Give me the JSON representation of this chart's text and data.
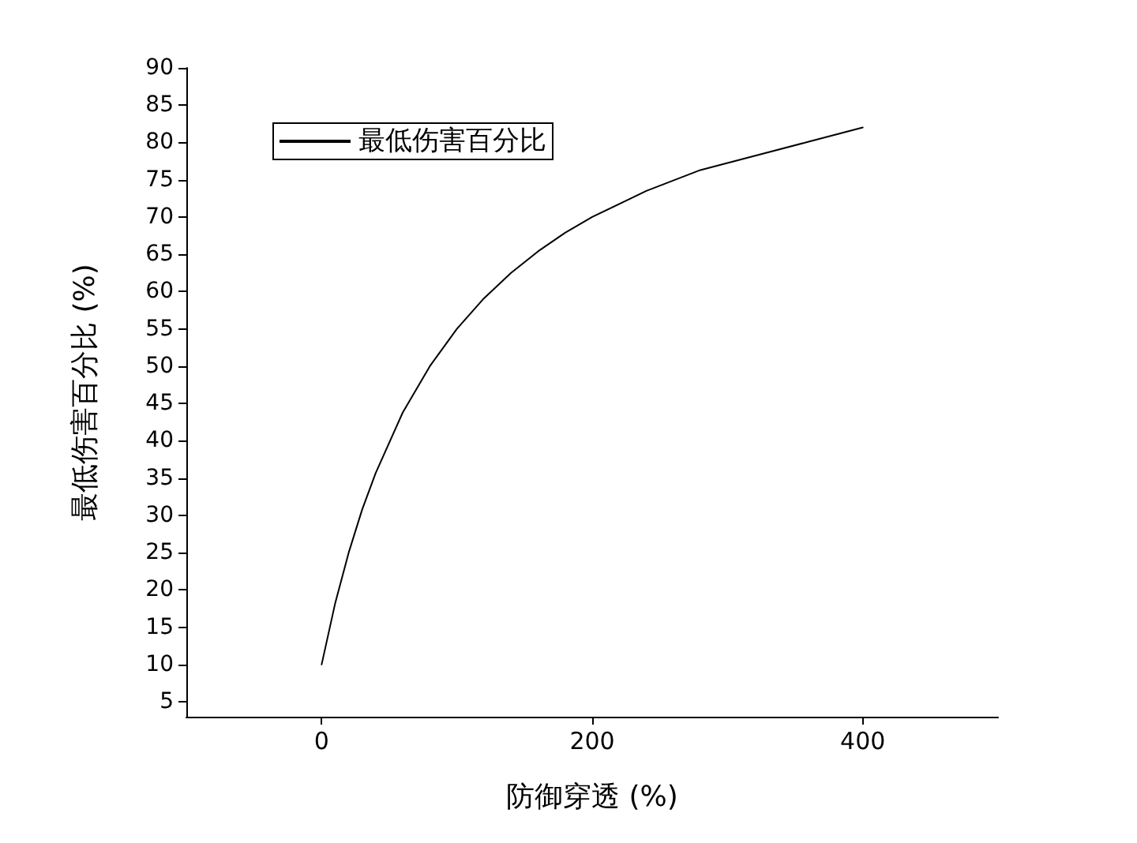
{
  "chart_data": {
    "type": "line",
    "xlabel": "防御穿透 (%)",
    "ylabel": "最低伤害百分比 (%)",
    "x": [
      0,
      10,
      20,
      30,
      40,
      60,
      80,
      100,
      120,
      140,
      160,
      180,
      200,
      240,
      280,
      320,
      360,
      400
    ],
    "series": [
      {
        "name": "最低伤害百分比",
        "color": "#000000",
        "values": [
          10,
          18.2,
          25,
          30.8,
          35.7,
          43.8,
          50,
          55,
          59.1,
          62.5,
          65.4,
          67.9,
          70,
          73.5,
          76.3,
          78.2,
          80.1,
          82
        ]
      }
    ],
    "xlim": [
      -100,
      500
    ],
    "xticks": [
      0,
      200,
      400
    ],
    "ylim": [
      3,
      90
    ],
    "yticks": [
      5,
      10,
      15,
      20,
      25,
      30,
      35,
      40,
      45,
      50,
      55,
      60,
      65,
      70,
      75,
      80,
      85,
      90
    ],
    "grid": false,
    "legend": "top left",
    "marker": "none",
    "line_style": "solid"
  }
}
